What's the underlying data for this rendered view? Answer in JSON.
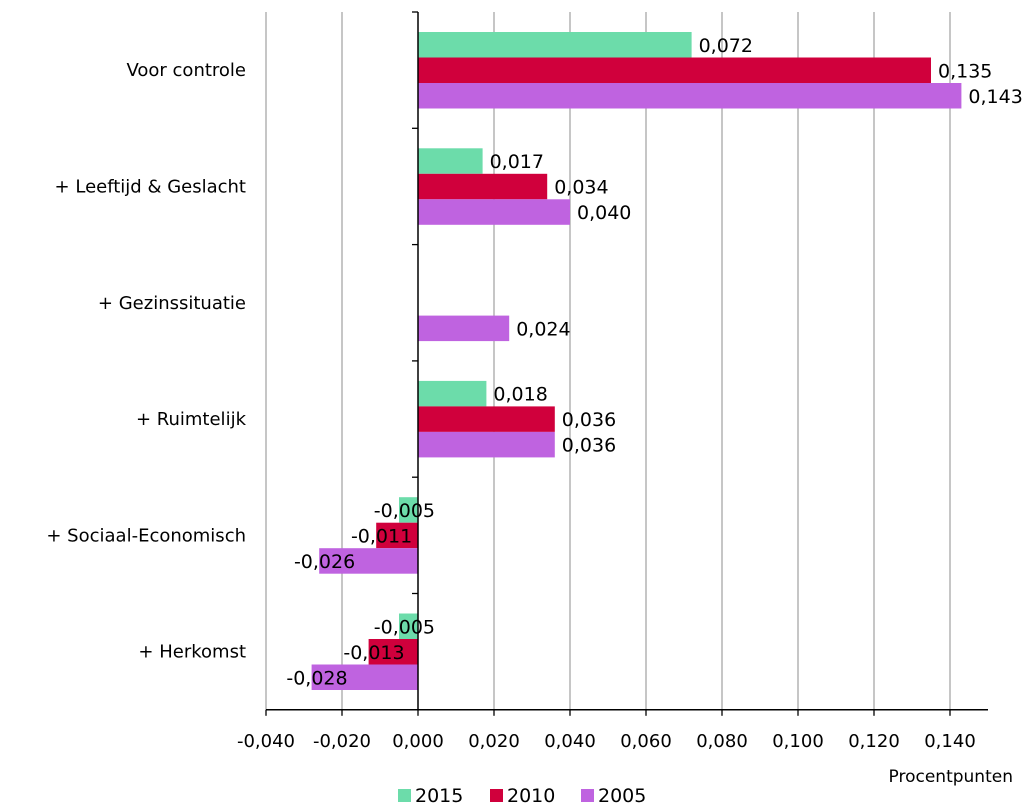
{
  "chart_data": {
    "type": "bar",
    "orientation": "horizontal",
    "categories": [
      "Voor controle",
      "+ Leeftijd & Geslacht",
      "+ Gezinssituatie",
      "+ Ruimtelijk",
      "+ Sociaal-Economisch",
      "+ Herkomst"
    ],
    "series": [
      {
        "name": "2015",
        "color": "#6cdcaa",
        "values": [
          0.072,
          0.017,
          null,
          0.018,
          -0.005,
          -0.005
        ],
        "labels": [
          "0,072",
          "0,017",
          "",
          "0,018",
          "-0,005",
          "-0,005"
        ]
      },
      {
        "name": "2010",
        "color": "#d0003c",
        "values": [
          0.135,
          0.034,
          null,
          0.036,
          -0.011,
          -0.013
        ],
        "labels": [
          "0,135",
          "0,034",
          "",
          "0,036",
          "-0,011",
          "-0,013"
        ]
      },
      {
        "name": "2005",
        "color": "#bf63e0",
        "values": [
          0.143,
          0.04,
          0.024,
          0.036,
          -0.026,
          -0.028
        ],
        "labels": [
          "0,143",
          "0,040",
          "0,024",
          "0,036",
          "-0,026",
          "-0,028"
        ]
      }
    ],
    "xlim": [
      -0.04,
      0.15
    ],
    "xticks": [
      -0.04,
      -0.02,
      0.0,
      0.02,
      0.04,
      0.06,
      0.08,
      0.1,
      0.12,
      0.14
    ],
    "xtick_labels": [
      "-0,040",
      "-0,020",
      "0,000",
      "0,020",
      "0,040",
      "0,060",
      "0,080",
      "0,100",
      "0,120",
      "0,140"
    ],
    "xlabel": "Procentpunten",
    "grid": "vertical",
    "legend_position": "bottom"
  }
}
